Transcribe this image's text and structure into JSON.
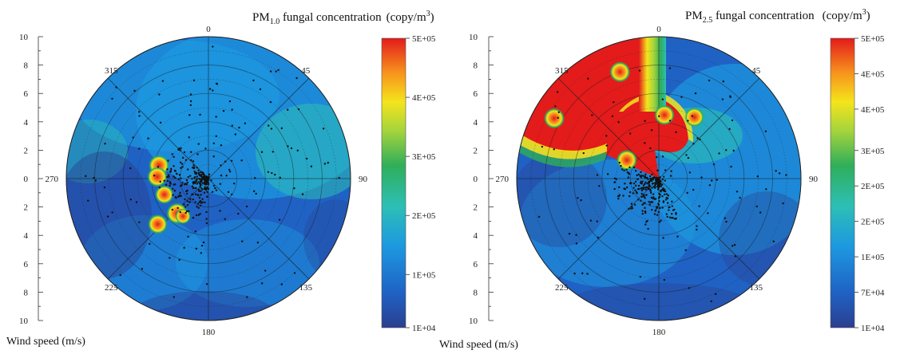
{
  "chart_data": [
    {
      "type": "heatmap",
      "subtype": "polar contour with scatter points",
      "title": {
        "prefix": "PM",
        "subscript": "1.0",
        "suffix": " fungal concentration",
        "unit_pre": "(copy/m",
        "unit_sup": "3",
        "unit_post": ")"
      },
      "xlabel": "Wind speed (m/s)",
      "angle_labels": [
        "0",
        "45",
        "90",
        "135",
        "180",
        "225",
        "270",
        "315"
      ],
      "angles_deg": [
        0,
        45,
        90,
        135,
        180,
        225,
        270,
        315
      ],
      "radial_ticks_upper": [
        "10",
        "8",
        "6",
        "4",
        "2",
        "0"
      ],
      "radial_ticks_lower": [
        "2",
        "4",
        "6",
        "8",
        "10"
      ],
      "r_range": [
        0,
        10
      ],
      "colorbar_ticks": [
        "5E+05",
        "4E+05",
        "3E+05",
        "2E+05",
        "1E+05",
        "1E+04"
      ],
      "colorbar_values": [
        500000,
        400000,
        300000,
        200000,
        100000,
        10000
      ],
      "hotspots": [
        {
          "angle": 285,
          "r": 3.6,
          "value": 500000
        },
        {
          "angle": 272,
          "r": 3.6,
          "value": 480000
        },
        {
          "angle": 250,
          "r": 3.3,
          "value": 420000
        },
        {
          "angle": 222,
          "r": 3.3,
          "value": 520000
        },
        {
          "angle": 228,
          "r": 4.8,
          "value": 460000
        },
        {
          "angle": 214,
          "r": 3.2,
          "value": 300000
        }
      ],
      "scatter_count": 380
    },
    {
      "type": "heatmap",
      "subtype": "polar contour with scatter points",
      "title": {
        "prefix": "PM",
        "subscript": "2.5",
        "suffix": " fungal concentration",
        "unit_pre": "(copy/m",
        "unit_sup": "3",
        "unit_post": ")"
      },
      "xlabel": "Wind speed (m/s)",
      "angle_labels": [
        "0",
        "45",
        "90",
        "135",
        "180",
        "225",
        "270",
        "315"
      ],
      "angles_deg": [
        0,
        45,
        90,
        135,
        180,
        225,
        270,
        315
      ],
      "radial_ticks_upper": [
        "10",
        "8",
        "6",
        "4",
        "2",
        "0"
      ],
      "radial_ticks_lower": [
        "2",
        "4",
        "6",
        "8",
        "10"
      ],
      "r_range": [
        0,
        10
      ],
      "colorbar_ticks": [
        "5E+05",
        "4E+05",
        "4E+05",
        "3E+05",
        "2E+05",
        "2E+05",
        "1E+05",
        "7E+04",
        "1E+04"
      ],
      "colorbar_values": [
        500000,
        440000,
        380000,
        310000,
        250000,
        190000,
        130000,
        70000,
        10000
      ],
      "hotspots": [
        {
          "angle": 300,
          "r": 8.5,
          "value": 500000
        },
        {
          "angle": 340,
          "r": 8.0,
          "value": 500000
        },
        {
          "angle": 5,
          "r": 4.5,
          "value": 480000
        },
        {
          "angle": 30,
          "r": 5.0,
          "value": 450000
        },
        {
          "angle": 300,
          "r": 2.6,
          "value": 500000
        }
      ],
      "scatter_count": 380
    }
  ]
}
